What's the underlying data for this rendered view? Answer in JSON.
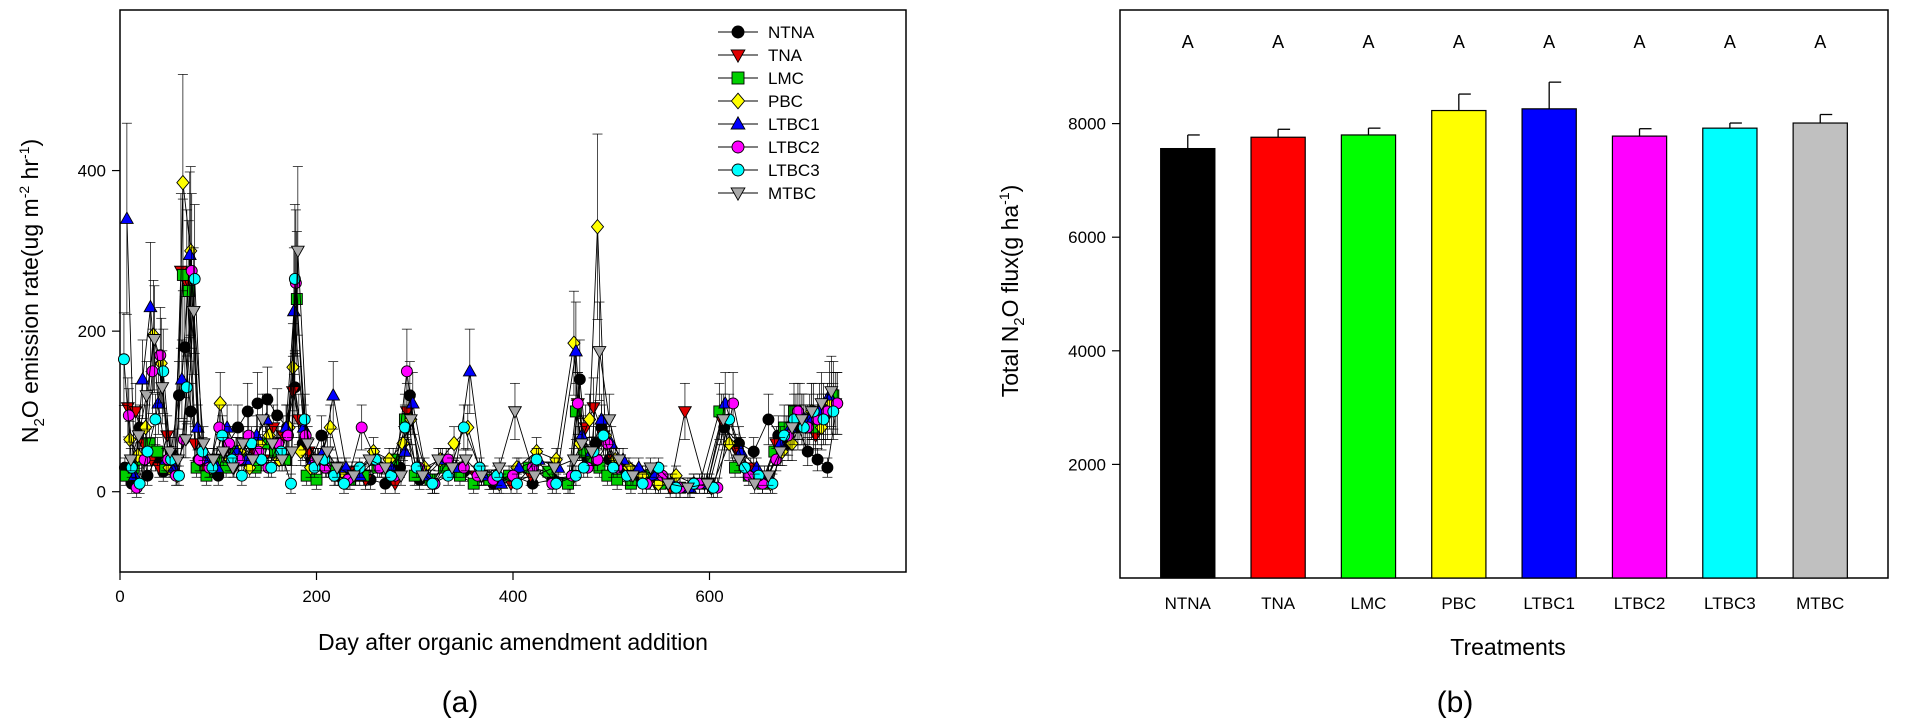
{
  "chart_data": [
    {
      "type": "scatter",
      "panel_label": "(a)",
      "xlabel": "Day after organic amendment addition",
      "ylabel": {
        "base": "N",
        "sub": "2",
        "mid": "O emission rate(ug m",
        "sup1": "-2",
        "mid2": " hr",
        "sup2": "-1",
        "end": ")"
      },
      "xlim": [
        0,
        800
      ],
      "ylim": [
        -100,
        600
      ],
      "xticks": [
        "0",
        "200",
        "400",
        "600"
      ],
      "xtick_values": [
        0,
        200,
        400,
        600
      ],
      "yticks": [
        "0",
        "200",
        "400"
      ],
      "ytick_values": [
        0,
        200,
        400
      ],
      "legend_position": "top-right",
      "grid": false,
      "series": [
        {
          "name": "NTNA",
          "color": "#000000",
          "marker": "circle",
          "x": [
            5,
            12,
            20,
            28,
            36,
            44,
            52,
            60,
            66,
            72,
            80,
            90,
            100,
            110,
            120,
            130,
            140,
            150,
            160,
            170,
            178,
            186,
            195,
            205,
            215,
            225,
            240,
            255,
            270,
            285,
            295,
            305,
            320,
            335,
            350,
            365,
            380,
            400,
            420,
            440,
            460,
            468,
            476,
            484,
            490,
            498,
            510,
            525,
            540,
            560,
            580,
            600,
            615,
            630,
            645,
            660,
            670,
            680,
            690,
            700,
            710,
            720,
            730
          ],
          "y": [
            30,
            10,
            80,
            20,
            40,
            25,
            50,
            120,
            180,
            100,
            40,
            30,
            20,
            60,
            80,
            100,
            110,
            115,
            95,
            80,
            130,
            60,
            40,
            70,
            30,
            25,
            20,
            15,
            10,
            30,
            120,
            15,
            10,
            30,
            25,
            20,
            10,
            20,
            10,
            15,
            20,
            140,
            40,
            60,
            80,
            40,
            30,
            20,
            15,
            10,
            5,
            10,
            80,
            60,
            50,
            90,
            70,
            60,
            80,
            50,
            40,
            30,
            110
          ]
        },
        {
          "name": "TNA",
          "color": "#e00000",
          "marker": "triangle-down",
          "x": [
            8,
            16,
            24,
            32,
            40,
            48,
            56,
            62,
            68,
            76,
            86,
            96,
            106,
            116,
            126,
            136,
            146,
            156,
            166,
            176,
            182,
            192,
            202,
            212,
            222,
            236,
            250,
            266,
            280,
            292,
            302,
            318,
            332,
            348,
            362,
            378,
            398,
            418,
            438,
            458,
            466,
            474,
            482,
            492,
            502,
            515,
            530,
            545,
            560,
            575,
            595,
            612,
            628,
            642,
            656,
            668,
            678,
            688,
            698,
            708,
            718,
            728
          ],
          "y": [
            105,
            100,
            60,
            40,
            30,
            70,
            40,
            275,
            260,
            60,
            30,
            40,
            50,
            30,
            60,
            50,
            40,
            80,
            70,
            125,
            90,
            50,
            40,
            30,
            20,
            25,
            15,
            30,
            10,
            100,
            20,
            10,
            40,
            30,
            20,
            15,
            10,
            20,
            25,
            10,
            110,
            80,
            105,
            70,
            40,
            30,
            20,
            10,
            5,
            100,
            10,
            90,
            50,
            30,
            20,
            60,
            70,
            90,
            80,
            70,
            90,
            110
          ]
        },
        {
          "name": "LMC",
          "color": "#00d000",
          "marker": "square",
          "x": [
            6,
            14,
            22,
            30,
            38,
            46,
            54,
            64,
            70,
            78,
            88,
            98,
            108,
            118,
            128,
            138,
            148,
            158,
            168,
            180,
            190,
            200,
            210,
            220,
            234,
            248,
            262,
            278,
            290,
            300,
            316,
            330,
            346,
            360,
            376,
            396,
            416,
            436,
            456,
            464,
            472,
            480,
            488,
            496,
            506,
            520,
            535,
            550,
            570,
            590,
            610,
            626,
            640,
            654,
            666,
            676,
            686,
            696,
            706,
            716,
            726
          ],
          "y": [
            20,
            30,
            40,
            60,
            50,
            30,
            40,
            270,
            250,
            30,
            20,
            40,
            30,
            50,
            40,
            30,
            60,
            50,
            40,
            240,
            20,
            15,
            30,
            25,
            15,
            20,
            30,
            40,
            90,
            20,
            15,
            30,
            20,
            10,
            15,
            20,
            30,
            25,
            10,
            100,
            50,
            40,
            30,
            20,
            15,
            10,
            20,
            10,
            5,
            10,
            100,
            30,
            20,
            10,
            50,
            80,
            100,
            90,
            80,
            100,
            120
          ]
        },
        {
          "name": "PBC",
          "color": "#ffff00",
          "marker": "diamond",
          "x": [
            10,
            18,
            26,
            34,
            42,
            50,
            58,
            64,
            72,
            82,
            92,
            102,
            112,
            122,
            132,
            142,
            152,
            162,
            172,
            176,
            184,
            194,
            204,
            214,
            226,
            242,
            258,
            274,
            288,
            296,
            310,
            326,
            340,
            354,
            368,
            386,
            404,
            424,
            444,
            462,
            468,
            478,
            486,
            494,
            504,
            518,
            532,
            548,
            566,
            584,
            602,
            620,
            636,
            650,
            662,
            674,
            684,
            694,
            704,
            714,
            724
          ],
          "y": [
            65,
            45,
            80,
            195,
            160,
            30,
            20,
            385,
            300,
            40,
            30,
            110,
            40,
            50,
            30,
            60,
            70,
            40,
            80,
            155,
            50,
            30,
            40,
            80,
            20,
            25,
            50,
            40,
            60,
            90,
            30,
            40,
            60,
            80,
            20,
            10,
            30,
            50,
            40,
            185,
            60,
            90,
            330,
            70,
            40,
            30,
            20,
            10,
            20,
            10,
            5,
            60,
            30,
            20,
            10,
            50,
            60,
            90,
            100,
            80,
            110
          ]
        },
        {
          "name": "LTBC1",
          "color": "#0000ff",
          "marker": "triangle-up",
          "x": [
            7,
            15,
            23,
            31,
            39,
            47,
            55,
            63,
            71,
            79,
            89,
            99,
            109,
            119,
            129,
            139,
            149,
            159,
            169,
            177,
            187,
            197,
            207,
            217,
            230,
            244,
            260,
            276,
            290,
            298,
            312,
            328,
            342,
            356,
            370,
            388,
            406,
            426,
            446,
            464,
            470,
            480,
            490,
            500,
            512,
            528,
            544,
            562,
            580,
            598,
            616,
            632,
            648,
            660,
            672,
            682,
            692,
            702,
            712,
            722
          ],
          "y": [
            340,
            20,
            140,
            230,
            110,
            40,
            30,
            140,
            295,
            80,
            40,
            30,
            80,
            50,
            40,
            70,
            90,
            60,
            80,
            225,
            80,
            40,
            50,
            120,
            30,
            20,
            40,
            30,
            50,
            110,
            20,
            40,
            30,
            150,
            20,
            10,
            30,
            40,
            30,
            175,
            70,
            50,
            90,
            60,
            40,
            30,
            20,
            10,
            5,
            10,
            110,
            50,
            30,
            20,
            60,
            80,
            100,
            90,
            100,
            120
          ]
        },
        {
          "name": "LTBC2",
          "color": "#ff00ff",
          "marker": "circle",
          "x": [
            9,
            17,
            25,
            33,
            41,
            49,
            57,
            65,
            73,
            81,
            91,
            101,
            111,
            121,
            131,
            141,
            151,
            161,
            171,
            179,
            189,
            199,
            209,
            219,
            232,
            246,
            264,
            280,
            292,
            304,
            320,
            334,
            350,
            364,
            380,
            400,
            420,
            440,
            460,
            466,
            476,
            486,
            496,
            506,
            520,
            536,
            552,
            570,
            590,
            608,
            624,
            640,
            654,
            668,
            680,
            690,
            700,
            710,
            720,
            730
          ],
          "y": [
            95,
            5,
            40,
            150,
            170,
            40,
            20,
            65,
            275,
            40,
            30,
            80,
            60,
            40,
            70,
            50,
            30,
            60,
            70,
            260,
            70,
            40,
            30,
            20,
            15,
            80,
            30,
            20,
            150,
            30,
            10,
            40,
            30,
            20,
            15,
            20,
            30,
            10,
            20,
            110,
            30,
            40,
            60,
            30,
            20,
            10,
            20,
            5,
            10,
            5,
            110,
            20,
            10,
            40,
            70,
            100,
            80,
            90,
            100,
            110
          ]
        },
        {
          "name": "LTBC3",
          "color": "#00ffff",
          "marker": "circle",
          "x": [
            4,
            12,
            20,
            28,
            36,
            44,
            52,
            60,
            68,
            76,
            84,
            94,
            104,
            114,
            124,
            134,
            144,
            154,
            164,
            174,
            178,
            188,
            198,
            208,
            218,
            228,
            244,
            260,
            276,
            290,
            302,
            318,
            334,
            350,
            366,
            384,
            404,
            424,
            444,
            464,
            472,
            482,
            492,
            502,
            516,
            532,
            548,
            566,
            584,
            604,
            620,
            636,
            650,
            664,
            676,
            686,
            696,
            706,
            716,
            726
          ],
          "y": [
            165,
            30,
            10,
            50,
            90,
            150,
            40,
            20,
            130,
            265,
            50,
            30,
            70,
            40,
            20,
            60,
            40,
            30,
            50,
            10,
            265,
            90,
            30,
            40,
            20,
            10,
            30,
            40,
            20,
            80,
            30,
            10,
            20,
            80,
            30,
            20,
            10,
            40,
            10,
            20,
            30,
            50,
            70,
            30,
            20,
            10,
            30,
            5,
            10,
            5,
            90,
            30,
            20,
            10,
            70,
            90,
            80,
            100,
            90,
            100
          ]
        },
        {
          "name": "MTBC",
          "color": "#a9a9a9",
          "marker": "triangle-down",
          "x": [
            11,
            19,
            27,
            35,
            43,
            51,
            59,
            67,
            75,
            85,
            95,
            105,
            115,
            125,
            135,
            145,
            155,
            165,
            175,
            181,
            191,
            201,
            211,
            221,
            238,
            254,
            270,
            286,
            296,
            308,
            324,
            338,
            352,
            368,
            386,
            402,
            422,
            442,
            462,
            470,
            480,
            488,
            498,
            508,
            522,
            540,
            558,
            578,
            598,
            614,
            630,
            646,
            660,
            672,
            684,
            694,
            704,
            714,
            724
          ],
          "y": [
            40,
            70,
            120,
            190,
            130,
            50,
            40,
            65,
            225,
            60,
            40,
            50,
            30,
            60,
            40,
            90,
            60,
            40,
            50,
            300,
            60,
            40,
            50,
            30,
            20,
            40,
            30,
            20,
            90,
            20,
            40,
            30,
            40,
            20,
            30,
            100,
            20,
            30,
            40,
            60,
            50,
            175,
            90,
            40,
            20,
            30,
            10,
            5,
            10,
            90,
            40,
            10,
            20,
            50,
            80,
            90,
            100,
            110,
            125
          ]
        }
      ]
    },
    {
      "type": "bar",
      "panel_label": "(b)",
      "xlabel": "Treatments",
      "ylabel": {
        "base": "Total N",
        "sub": "2",
        "mid": "O flux(g ha",
        "sup1": "-1",
        "end": ")"
      },
      "categories": [
        "NTNA",
        "TNA",
        "LMC",
        "PBC",
        "LTBC1",
        "LTBC2",
        "LTBC3",
        "MTBC"
      ],
      "values": [
        7560,
        7760,
        7800,
        8230,
        8260,
        7780,
        7920,
        8010
      ],
      "errors": [
        240,
        140,
        120,
        290,
        470,
        130,
        90,
        150
      ],
      "colors": [
        "#000000",
        "#ff0000",
        "#00ff00",
        "#ffff00",
        "#0000ff",
        "#ff00ff",
        "#00ffff",
        "#c0c0c0"
      ],
      "significance_letters": [
        "A",
        "A",
        "A",
        "A",
        "A",
        "A",
        "A",
        "A"
      ],
      "ylim": [
        0,
        10000
      ],
      "yticks": [
        "2000",
        "4000",
        "6000",
        "8000"
      ],
      "ytick_values": [
        2000,
        4000,
        6000,
        8000
      ],
      "grid": false
    }
  ]
}
